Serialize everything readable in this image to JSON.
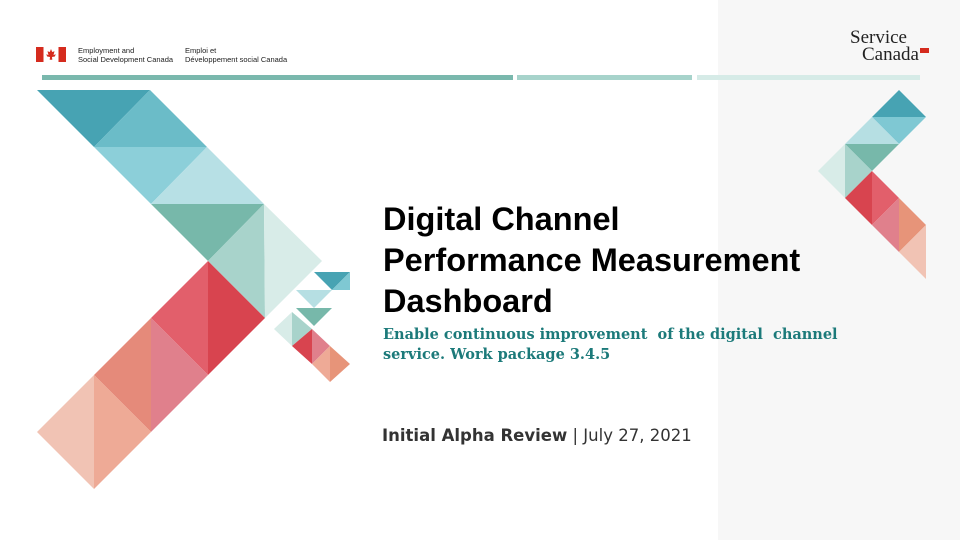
{
  "header": {
    "department_en_line1": "Employment and",
    "department_en_line2": "Social Development Canada",
    "department_fr_line1": "Emploi et",
    "department_fr_line2": "Développement social Canada",
    "flag_icon": "canada-flag-icon",
    "brand": {
      "word1": "Service",
      "word2": "Canada"
    }
  },
  "slide": {
    "title_line1": "Digital Channel",
    "title_line2": "Performance Measurement",
    "title_line3": "Dashboard",
    "subtitle_line1": "Enable continuous improvement  of the digital  channel",
    "subtitle_line2": "service. Work package 3.4.5",
    "review_label": "Initial Alpha Review",
    "review_sep": " | ",
    "review_date": "July 27, 2021"
  },
  "colors": {
    "teal_dark": "#47a3b3",
    "teal_mid": "#7fc8d3",
    "teal_light": "#b6dfe3",
    "green": "#77b8aa",
    "red_dark": "#d8444f",
    "red_mid": "#e0808c",
    "orange": "#e79479",
    "peach": "#f1c3b4",
    "subtitle": "#1c7a7a",
    "canada_red": "#d52b1e"
  }
}
